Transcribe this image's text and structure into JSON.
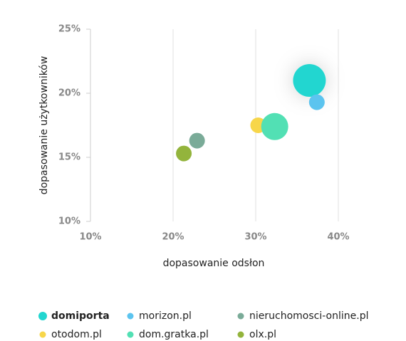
{
  "chart_data": {
    "type": "bubble",
    "xlabel": "dopasowanie odsłon",
    "ylabel": "dopasowanie użytkowników",
    "xlim": [
      10,
      40
    ],
    "xticks": [
      {
        "value": 10,
        "label": "10%"
      },
      {
        "value": 20,
        "label": "20%"
      },
      {
        "value": 30,
        "label": "30%"
      },
      {
        "value": 40,
        "label": "40%"
      }
    ],
    "ylim": [
      10,
      25
    ],
    "yticks": [
      {
        "value": 10,
        "label": "10%"
      },
      {
        "value": 15,
        "label": "15%"
      },
      {
        "value": 20,
        "label": "20%"
      },
      {
        "value": 25,
        "label": "25%"
      }
    ],
    "grid": true,
    "series": [
      {
        "name": "domiporta",
        "color": "#22d6d0",
        "x": [
          36.5
        ],
        "y": [
          21.0
        ],
        "size": [
          23
        ]
      },
      {
        "name": "morizon.pl",
        "color": "#5cc4ef",
        "x": [
          37.4
        ],
        "y": [
          19.3
        ],
        "size": [
          11
        ]
      },
      {
        "name": "nieruchomosci-online.pl",
        "color": "#7aab98",
        "x": [
          22.9
        ],
        "y": [
          16.3
        ],
        "size": [
          11
        ]
      },
      {
        "name": "otodom.pl",
        "color": "#f7d64a",
        "x": [
          30.3
        ],
        "y": [
          17.5
        ],
        "size": [
          11
        ]
      },
      {
        "name": "dom.gratka.pl",
        "color": "#52e0b4",
        "x": [
          32.3
        ],
        "y": [
          17.4
        ],
        "size": [
          19
        ]
      },
      {
        "name": "olx.pl",
        "color": "#93b43c",
        "x": [
          21.3
        ],
        "y": [
          15.3
        ],
        "size": [
          11
        ]
      }
    ]
  }
}
